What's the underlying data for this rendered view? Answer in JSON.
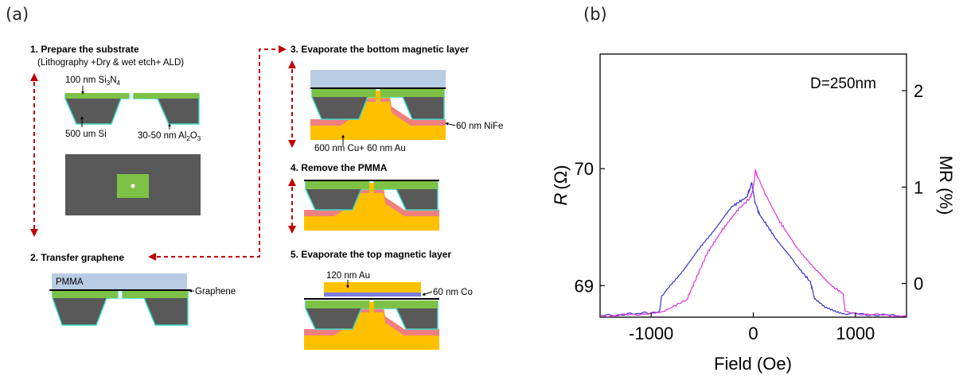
{
  "panel_a": {
    "label": "(a)",
    "steps": [
      {
        "title": "1.  Prepare the substrate",
        "subtitle": "(Lithography +Dry & wet etch+ ALD)"
      },
      {
        "title": "2.  Transfer graphene"
      },
      {
        "title": "3.  Evaporate the bottom magnetic layer"
      },
      {
        "title": "4.  Remove the PMMA"
      },
      {
        "title": "5.  Evaporate the top magnetic layer"
      }
    ],
    "annotations": {
      "si3n4_prefix": "100 nm Si",
      "si3n4_sub1": "3",
      "si3n4_mid": "N",
      "si3n4_sub2": "4",
      "si": "500 um Si",
      "al2o3_prefix": "30-50 nm Al",
      "al2o3_sub1": "2",
      "al2o3_mid": "O",
      "al2o3_sub2": "3",
      "pmma": "PMMA",
      "graphene": "Graphene",
      "nife": "60 nm NiFe",
      "cu_au": "600 nm Cu+ 60 nm Au",
      "au_top": "120 nm Au",
      "co": "60 nm Co"
    },
    "colors": {
      "substrate": "#595959",
      "si3n4": "#7dc246",
      "al2o3_outline": "#3cdcc8",
      "pmma": "#b8cce4",
      "graphene": "#000000",
      "nife": "#f08080",
      "cu_au": "#ffc000",
      "co": "#7c7ce0",
      "arrow": "#c00000"
    }
  },
  "panel_b": {
    "label": "(b)",
    "chart_data": {
      "type": "line",
      "annotation": "D=250nm",
      "xlabel": "Field (Oe)",
      "ylabel_left": "R (Ω)",
      "ylabel_left_var": "R",
      "ylabel_left_unit": "(Ω)",
      "ylabel_right": "MR (%)",
      "xlim": [
        -1500,
        1500
      ],
      "ylim_left": [
        68.73,
        70.98
      ],
      "ylim_right": [
        -0.35,
        2.38
      ],
      "x_ticks": [
        -1000,
        0,
        1000
      ],
      "x_tick_labels": [
        "-1000",
        "0",
        "1000"
      ],
      "y_left_ticks": [
        69,
        70
      ],
      "y_left_tick_labels": [
        "69",
        "70"
      ],
      "y_right_ticks": [
        0,
        1,
        2
      ],
      "y_right_tick_labels": [
        "0",
        "1",
        "2"
      ],
      "series": [
        {
          "color": "#3333cc",
          "x": [
            -1500,
            -1200,
            -920,
            -900,
            -800,
            -600,
            -400,
            -200,
            -60,
            -15,
            0,
            15,
            60,
            200,
            400,
            560,
            600,
            700,
            900,
            1200,
            1500
          ],
          "y": [
            68.74,
            68.76,
            68.77,
            68.9,
            69.01,
            69.23,
            69.46,
            69.68,
            69.76,
            69.88,
            69.8,
            69.72,
            69.61,
            69.43,
            69.2,
            69.03,
            68.89,
            68.81,
            68.76,
            68.75,
            68.74
          ]
        },
        {
          "color": "#dd33dd",
          "x": [
            -1500,
            -1200,
            -900,
            -650,
            -580,
            -450,
            -300,
            -150,
            -30,
            0,
            20,
            40,
            120,
            250,
            400,
            600,
            800,
            880,
            900,
            1200,
            1500
          ],
          "y": [
            68.74,
            68.75,
            68.77,
            68.88,
            69.02,
            69.28,
            69.48,
            69.65,
            69.75,
            69.83,
            69.98,
            69.94,
            69.78,
            69.56,
            69.36,
            69.14,
            68.98,
            68.93,
            68.77,
            68.75,
            68.74
          ]
        }
      ]
    }
  }
}
